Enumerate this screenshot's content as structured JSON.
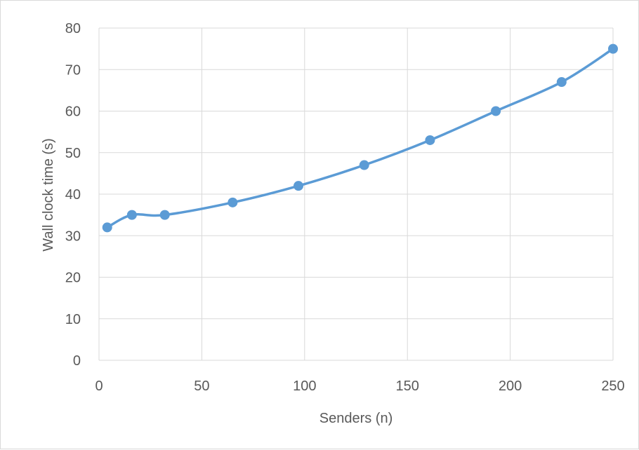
{
  "chart_data": {
    "type": "line",
    "title": "",
    "xlabel": "Senders (n)",
    "ylabel": "Wall clock time (s)",
    "xlim": [
      0,
      250
    ],
    "ylim": [
      0,
      80
    ],
    "x_ticks": [
      0,
      50,
      100,
      150,
      200,
      250
    ],
    "y_ticks": [
      0,
      10,
      20,
      30,
      40,
      50,
      60,
      70,
      80
    ],
    "grid": true,
    "legend": "none",
    "series": [
      {
        "color": "#5b9bd5",
        "x": [
          4,
          16,
          32,
          65,
          97,
          129,
          161,
          193,
          225,
          250
        ],
        "y": [
          32,
          35,
          35,
          38,
          42,
          47,
          53,
          60,
          67,
          75
        ]
      }
    ]
  }
}
